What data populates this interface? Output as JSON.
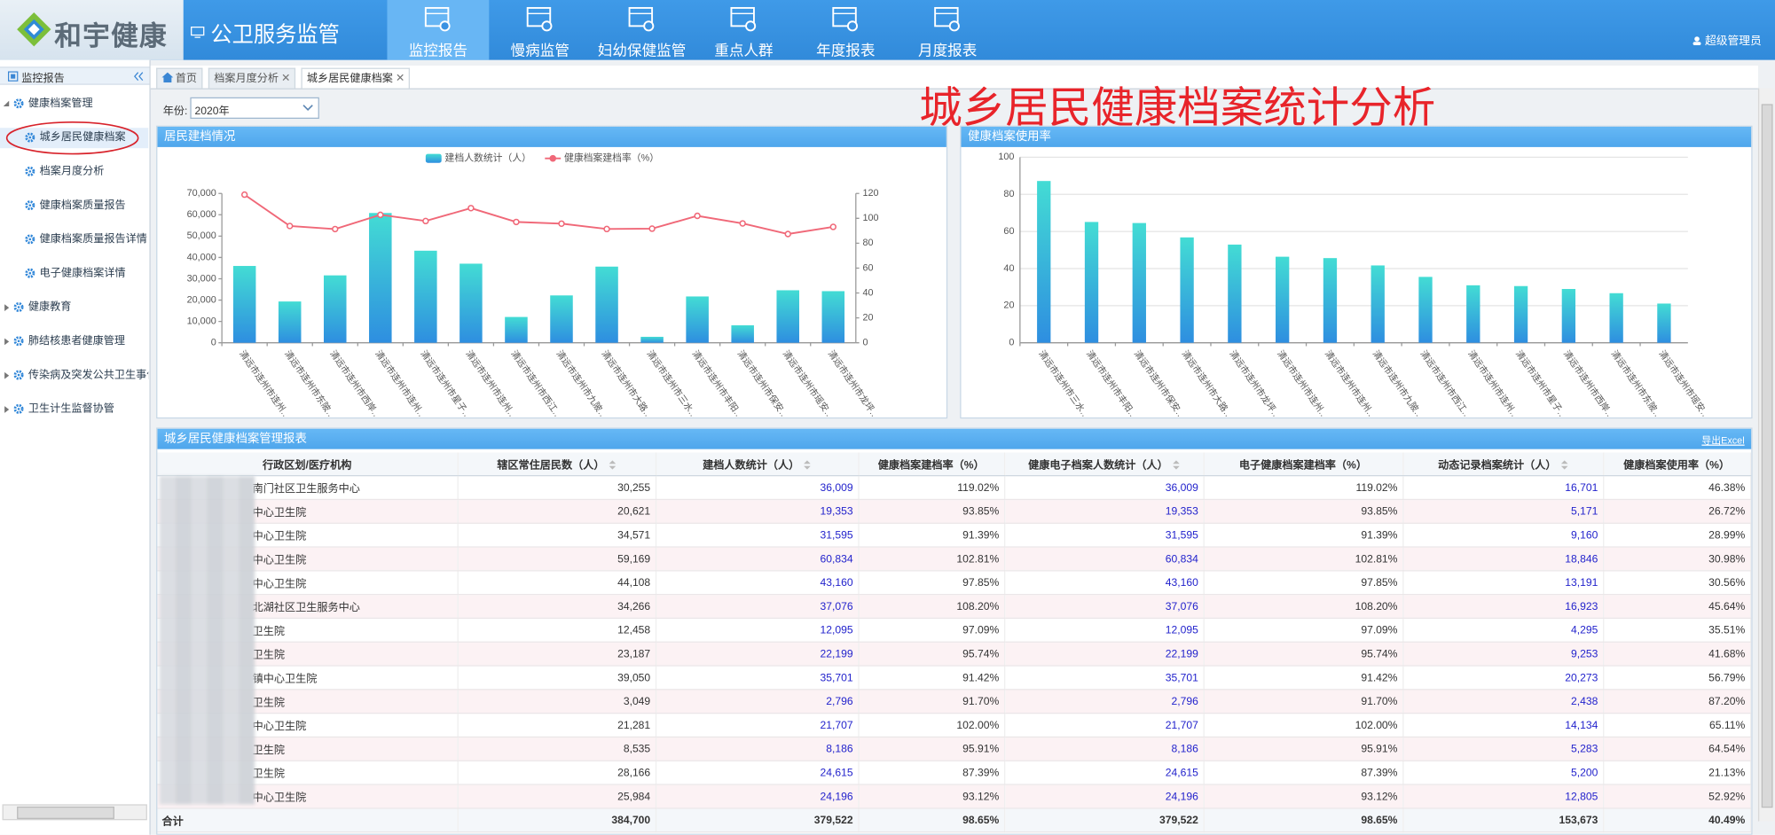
{
  "header": {
    "brand": "和宇健康",
    "system": "公卫服务监管",
    "nav": [
      "监控报告",
      "慢病监管",
      "妇幼保健监管",
      "重点人群",
      "年度报表",
      "月度报表"
    ],
    "user": "超级管理员"
  },
  "sidebar": {
    "title": "监控报告",
    "groups": [
      {
        "label": "健康档案管理",
        "items": [
          "城乡居民健康档案",
          "档案月度分析",
          "健康档案质量报告",
          "健康档案质量报告详情",
          "电子健康档案详情"
        ]
      },
      {
        "label": "健康教育"
      },
      {
        "label": "肺结核患者健康管理"
      },
      {
        "label": "传染病及突发公共卫生事件"
      },
      {
        "label": "卫生计生监督协管"
      }
    ]
  },
  "tabs": [
    "首页",
    "档案月度分析",
    "城乡居民健康档案"
  ],
  "filter": {
    "label": "年份:",
    "value": "2020年"
  },
  "page_title": "城乡居民健康档案统计分析",
  "chart_data": [
    {
      "type": "combo",
      "title": "居民建档情况",
      "categories": [
        "清远市连州市连州…",
        "清远市连州市东陂…",
        "清远市连州市西岸…",
        "清远市连州市连州…",
        "清远市连州市星子…",
        "清远市连州市连州…",
        "清远市连州市西江…",
        "清远市连州市九陂…",
        "清远市连州市大路…",
        "清远市连州市三水…",
        "清远市连州市丰阳…",
        "清远市连州市保安…",
        "清远市连州市瑶安…",
        "清远市连州市龙坪…"
      ],
      "series": [
        {
          "name": "建档人数统计（人）",
          "color": "#35b8e0",
          "values": [
            36009,
            19353,
            31595,
            60834,
            43160,
            37076,
            12095,
            22199,
            35701,
            2796,
            21707,
            8186,
            24615,
            24196
          ]
        },
        {
          "name": "健康档案建档率（%）",
          "color": "#f06878",
          "axis": "y2",
          "values": [
            119.02,
            93.85,
            91.39,
            102.81,
            97.85,
            108.2,
            97.09,
            95.74,
            91.42,
            91.7,
            102.0,
            95.91,
            87.39,
            93.12
          ]
        }
      ],
      "ylim": [
        0,
        70000
      ],
      "yticks": [
        0,
        {
          "value": 10000,
          "label": "10,000"
        },
        {
          "value": 20000,
          "label": "20,000"
        },
        {
          "value": 30000,
          "label": "30,000"
        },
        {
          "value": 40000,
          "label": "40,000"
        },
        {
          "value": 50000,
          "label": "50,000"
        },
        {
          "value": 60000,
          "label": "60,000"
        },
        {
          "value": 70000,
          "label": "70,000"
        }
      ],
      "y2lim": [
        0,
        120
      ],
      "y2ticks": [
        0,
        20,
        40,
        60,
        80,
        100,
        120
      ],
      "grid": false,
      "legend": "top"
    },
    {
      "type": "bar",
      "title": "健康档案使用率",
      "categories": [
        "清远市连州市三水…",
        "清远市连州市丰阳…",
        "清远市连州市保安…",
        "清远市连州市大路…",
        "清远市连州市龙坪…",
        "清远市连州市连州…",
        "清远市连州市连州…",
        "清远市连州市九陂…",
        "清远市连州市西江…",
        "清远市连州市连州…",
        "清远市连州市星子…",
        "清远市连州市西岸…",
        "清远市连州市东陂…",
        "清远市连州市瑶安…"
      ],
      "values": [
        87.2,
        65.11,
        64.54,
        56.79,
        52.92,
        46.38,
        45.64,
        41.68,
        35.51,
        30.98,
        30.56,
        28.99,
        26.72,
        21.13
      ],
      "color": "#35b8e0",
      "ylim": [
        0,
        100
      ],
      "yticks": [
        0,
        20,
        40,
        60,
        80,
        100
      ],
      "grid": true
    }
  ],
  "table": {
    "title": "城乡居民健康档案管理报表",
    "export": "导出Excel",
    "columns": [
      "行政区划/医疗机构",
      "辖区常住居民数（人）",
      "建档人数统计（人）",
      "健康档案建档率（%）",
      "健康电子档案人数统计（人）",
      "电子健康档案建档率（%）",
      "动态记录档案统计（人）",
      "健康档案使用率（%）"
    ],
    "rows": [
      [
        "南门社区卫生服务中心",
        "30,255",
        "36,009",
        "119.02%",
        "36,009",
        "119.02%",
        "16,701",
        "46.38%"
      ],
      [
        "中心卫生院",
        "20,621",
        "19,353",
        "93.85%",
        "19,353",
        "93.85%",
        "5,171",
        "26.72%"
      ],
      [
        "中心卫生院",
        "34,571",
        "31,595",
        "91.39%",
        "31,595",
        "91.39%",
        "9,160",
        "28.99%"
      ],
      [
        "中心卫生院",
        "59,169",
        "60,834",
        "102.81%",
        "60,834",
        "102.81%",
        "18,846",
        "30.98%"
      ],
      [
        "中心卫生院",
        "44,108",
        "43,160",
        "97.85%",
        "43,160",
        "97.85%",
        "13,191",
        "30.56%"
      ],
      [
        "北湖社区卫生服务中心",
        "34,266",
        "37,076",
        "108.20%",
        "37,076",
        "108.20%",
        "16,923",
        "45.64%"
      ],
      [
        "卫生院",
        "12,458",
        "12,095",
        "97.09%",
        "12,095",
        "97.09%",
        "4,295",
        "35.51%"
      ],
      [
        "卫生院",
        "23,187",
        "22,199",
        "95.74%",
        "22,199",
        "95.74%",
        "9,253",
        "41.68%"
      ],
      [
        "镇中心卫生院",
        "39,050",
        "35,701",
        "91.42%",
        "35,701",
        "91.42%",
        "20,273",
        "56.79%"
      ],
      [
        "卫生院",
        "3,049",
        "2,796",
        "91.70%",
        "2,796",
        "91.70%",
        "2,438",
        "87.20%"
      ],
      [
        "中心卫生院",
        "21,281",
        "21,707",
        "102.00%",
        "21,707",
        "102.00%",
        "14,134",
        "65.11%"
      ],
      [
        "卫生院",
        "8,535",
        "8,186",
        "95.91%",
        "8,186",
        "95.91%",
        "5,283",
        "64.54%"
      ],
      [
        "卫生院",
        "28,166",
        "24,615",
        "87.39%",
        "24,615",
        "87.39%",
        "5,200",
        "21.13%"
      ],
      [
        "中心卫生院",
        "25,984",
        "24,196",
        "93.12%",
        "24,196",
        "93.12%",
        "12,805",
        "52.92%"
      ]
    ],
    "total": [
      "合计",
      "384,700",
      "379,522",
      "98.65%",
      "379,522",
      "98.65%",
      "153,673",
      "40.49%"
    ]
  }
}
